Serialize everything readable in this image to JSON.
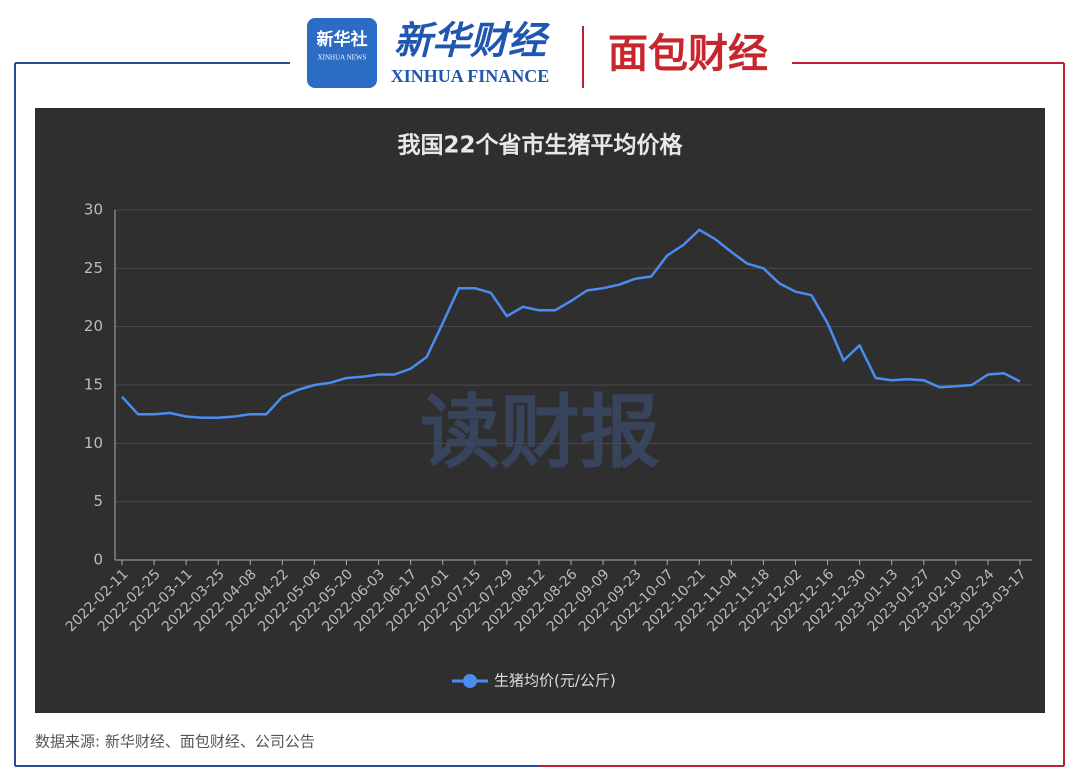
{
  "header": {
    "xinhua_news_cn": "新华社",
    "xinhua_news_en": "XINHUA NEWS",
    "xinhua_finance_cn": "新华财经",
    "xinhua_finance_en": "XINHUA FINANCE",
    "mianbao": "面包财经"
  },
  "chart_data": {
    "type": "line",
    "title": "我国22个省市生猪平均价格",
    "watermark": "读财报",
    "categories": [
      "2022-02-11",
      null,
      "2022-02-25",
      null,
      "2022-03-11",
      null,
      "2022-03-25",
      null,
      "2022-04-08",
      null,
      "2022-04-22",
      null,
      "2022-05-06",
      null,
      "2022-05-20",
      null,
      "2022-06-03",
      null,
      "2022-06-17",
      null,
      "2022-07-01",
      null,
      "2022-07-15",
      null,
      "2022-07-29",
      null,
      "2022-08-12",
      null,
      "2022-08-26",
      null,
      "2022-09-09",
      null,
      "2022-09-23",
      null,
      "2022-10-07",
      null,
      "2022-10-21",
      null,
      "2022-11-04",
      null,
      "2022-11-18",
      null,
      "2022-12-02",
      null,
      "2022-12-16",
      null,
      "2022-12-30",
      null,
      "2023-01-13",
      null,
      "2023-01-27",
      null,
      "2023-02-10",
      null,
      "2023-02-24",
      null,
      "2023-03-17"
    ],
    "series": [
      {
        "name": "生猪均价(元/公斤)",
        "color": "#4a8cf0",
        "values": [
          14.0,
          12.5,
          12.5,
          12.6,
          12.3,
          12.2,
          12.2,
          12.3,
          12.5,
          12.5,
          14.0,
          14.6,
          15.0,
          15.2,
          15.6,
          15.7,
          15.9,
          15.9,
          16.4,
          17.4,
          20.3,
          23.3,
          23.3,
          22.9,
          20.9,
          21.7,
          21.4,
          21.4,
          22.2,
          23.1,
          23.3,
          23.6,
          24.1,
          24.3,
          26.1,
          27.0,
          28.3,
          27.5,
          26.4,
          25.4,
          25.0,
          23.7,
          23.0,
          22.7,
          20.3,
          17.1,
          18.4,
          15.6,
          15.4,
          15.5,
          15.4,
          14.8,
          14.9,
          15.0,
          15.9,
          16.0,
          15.3
        ]
      }
    ],
    "ylim": [
      0,
      30
    ],
    "yticks": [
      0,
      5,
      10,
      15,
      20,
      25,
      30
    ],
    "grid": true
  },
  "footer": {
    "source": "数据来源: 新华财经、面包财经、公司公告"
  }
}
